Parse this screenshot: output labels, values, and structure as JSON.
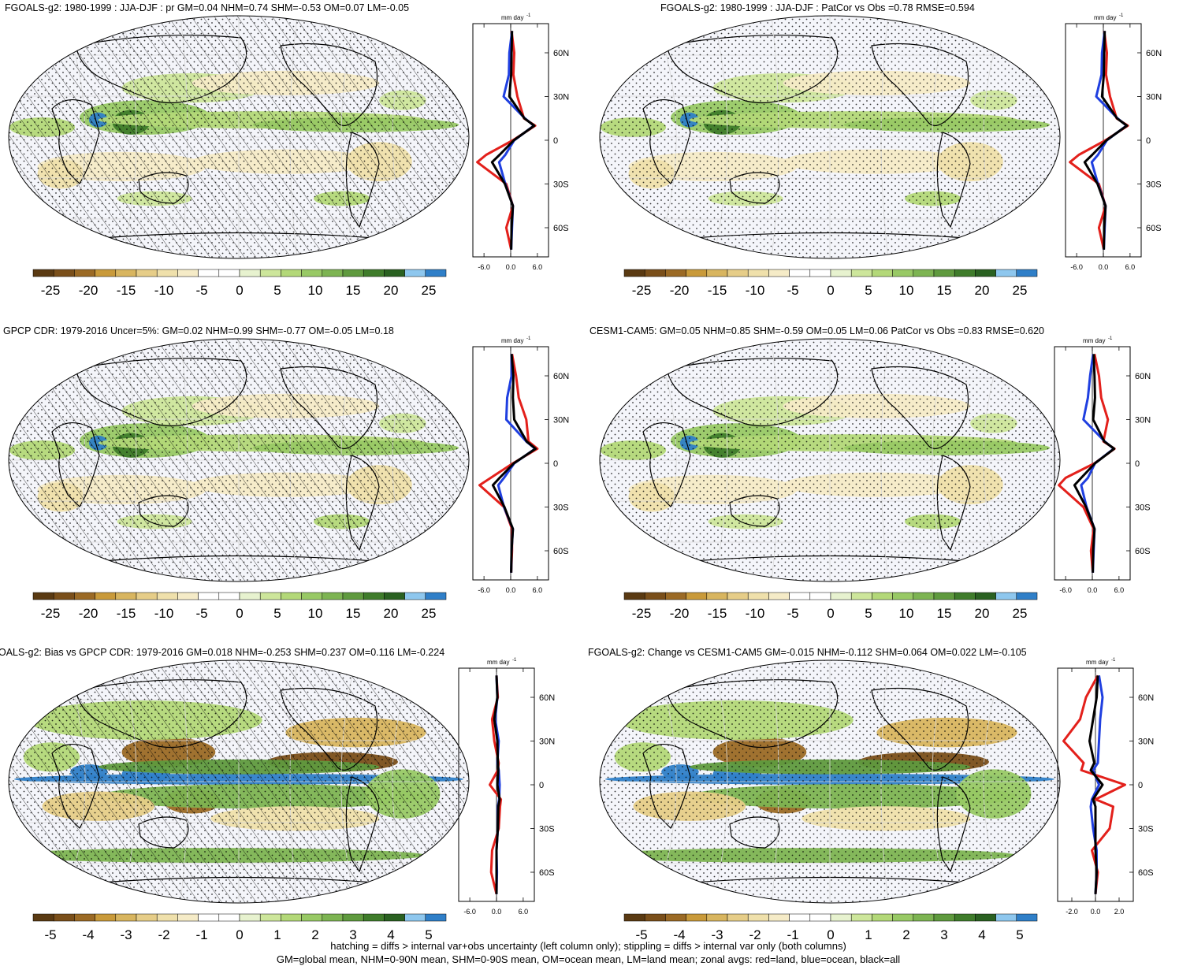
{
  "figure": {
    "footer_line1": "hatching = diffs > internal var+obs uncertainty (left column only); stippling = diffs > internal var only (both columns)",
    "footer_line2": "GM=global mean, NHM=0-90N mean, SHM=0-90S mean, OM=ocean mean, LM=land mean; zonal avgs: red=land, blue=ocean, black=all"
  },
  "zonal_legend": {
    "land": "red",
    "ocean": "blue",
    "all": "black"
  },
  "colors": {
    "ocean_bg": "#f4f5fa",
    "land_line": "#000000",
    "brown_palette": [
      "#5a3a12",
      "#7a4f1a",
      "#9b6a25",
      "#c99a3a",
      "#d8b55f",
      "#e6cd88",
      "#efe0ab",
      "#f5ebc7"
    ],
    "green_palette": [
      "#e7f2cf",
      "#cde69b",
      "#b3d878",
      "#98c965",
      "#7db452",
      "#5f9a3e",
      "#3f7c2b",
      "#2a6121"
    ],
    "blue_palette": [
      "#8ec7ee",
      "#2f7fc8"
    ]
  },
  "panels": [
    {
      "id": "top-left",
      "title": "FGOALS-g2: 1980-1999 : JJA-DJF : pr GM=0.04 NHM=0.74 SHM=-0.53 OM=0.07 LM=-0.05",
      "hatching": true,
      "colorbar_ticks": [
        "-25",
        "-20",
        "-15",
        "-10",
        "-5",
        "0",
        "5",
        "10",
        "15",
        "20",
        "25"
      ],
      "zonal_unit": "mm day",
      "zonal_unit_sup": "-1",
      "zonal_xticks": [
        "-6.0",
        "0.0",
        "6.0"
      ],
      "lat_labels": [
        "60N",
        "30N",
        "0",
        "30S",
        "60S"
      ]
    },
    {
      "id": "top-right",
      "title": "FGOALS-g2: 1980-1999 : JJA-DJF : PatCor vs Obs =0.78 RMSE=0.594",
      "hatching": false,
      "colorbar_ticks": [
        "-25",
        "-20",
        "-15",
        "-10",
        "-5",
        "0",
        "5",
        "10",
        "15",
        "20",
        "25"
      ],
      "zonal_unit": "mm day",
      "zonal_unit_sup": "-1",
      "zonal_xticks": [
        "-6.0",
        "0.0",
        "6.0"
      ],
      "lat_labels": [
        "60N",
        "30N",
        "0",
        "30S",
        "60S"
      ]
    },
    {
      "id": "middle-left",
      "title": "GPCP CDR: 1979-2016 Uncer=5%: GM=0.02 NHM=0.99 SHM=-0.77 OM=-0.05 LM=0.18",
      "hatching": true,
      "colorbar_ticks": [
        "-25",
        "-20",
        "-15",
        "-10",
        "-5",
        "0",
        "5",
        "10",
        "15",
        "20",
        "25"
      ],
      "zonal_unit": "mm day",
      "zonal_unit_sup": "-1",
      "zonal_xticks": [
        "-6.0",
        "0.0",
        "6.0"
      ],
      "lat_labels": [
        "60N",
        "30N",
        "0",
        "30S",
        "60S"
      ]
    },
    {
      "id": "middle-right",
      "title": "CESM1-CAM5: GM=0.05 NHM=0.85 SHM=-0.59 OM=0.05 LM=0.06 PatCor vs Obs =0.83 RMSE=0.620",
      "hatching": false,
      "colorbar_ticks": [
        "-25",
        "-20",
        "-15",
        "-10",
        "-5",
        "0",
        "5",
        "10",
        "15",
        "20",
        "25"
      ],
      "zonal_unit": "mm day",
      "zonal_unit_sup": "-1",
      "zonal_xticks": [
        "-6.0",
        "0.0",
        "6.0"
      ],
      "lat_labels": [
        "60N",
        "30N",
        "0",
        "30S",
        "60S"
      ]
    },
    {
      "id": "bottom-left",
      "title": "OALS-g2: Bias vs GPCP CDR: 1979-2016 GM=0.018 NHM=-0.253 SHM=0.237 OM=0.116 LM=-0.224",
      "hatching": true,
      "colorbar_ticks": [
        "-5",
        "-4",
        "-3",
        "-2",
        "-1",
        "0",
        "1",
        "2",
        "3",
        "4",
        "5"
      ],
      "zonal_unit": "mm day",
      "zonal_unit_sup": "-1",
      "zonal_xticks": [
        "-6.0",
        "0.0",
        "6.0"
      ],
      "lat_labels": [
        "60N",
        "30N",
        "0",
        "30S",
        "60S"
      ]
    },
    {
      "id": "bottom-right",
      "title": "FGOALS-g2: Change vs CESM1-CAM5 GM=-0.015 NHM=-0.112 SHM=0.064 OM=0.022 LM=-0.105",
      "hatching": false,
      "colorbar_ticks": [
        "-5",
        "-4",
        "-3",
        "-2",
        "-1",
        "0",
        "1",
        "2",
        "3",
        "4",
        "5"
      ],
      "zonal_unit": "mm day",
      "zonal_unit_sup": "-1",
      "zonal_xticks": [
        "-2.0",
        "0.0",
        "2.0"
      ],
      "lat_labels": [
        "60N",
        "30N",
        "0",
        "30S",
        "60S"
      ]
    }
  ],
  "chart_data": [
    {
      "type": "heatmap",
      "title": "FGOALS-g2: 1980-1999 : JJA-DJF : pr GM=0.04 NHM=0.74 SHM=-0.53 OM=0.07 LM=-0.05",
      "colorbar_range": [
        -25,
        25
      ],
      "zonal_mean": {
        "lat": [
          75,
          60,
          45,
          30,
          15,
          10,
          0,
          -10,
          -15,
          -30,
          -45,
          -60,
          -75
        ],
        "land": [
          0.2,
          0.8,
          0.6,
          1.5,
          3.0,
          5.5,
          0.5,
          -5.5,
          -7.5,
          -1.0,
          0.5,
          -1.0,
          0.1
        ],
        "ocean": [
          0.3,
          -0.3,
          -0.4,
          -1.6,
          3.2,
          5.2,
          0.8,
          -1.2,
          -2.6,
          -1.2,
          0.5,
          0.3,
          0.1
        ],
        "all": [
          0.3,
          0.2,
          0.1,
          -0.3,
          3.1,
          5.3,
          0.7,
          -2.5,
          -4.2,
          -1.3,
          0.5,
          0.2,
          0.1
        ]
      }
    },
    {
      "type": "heatmap",
      "title": "FGOALS-g2: 1980-1999 : JJA-DJF : PatCor vs Obs =0.78 RMSE=0.594",
      "colorbar_range": [
        -25,
        25
      ],
      "zonal_mean": {
        "lat": [
          75,
          60,
          45,
          30,
          15,
          10,
          0,
          -10,
          -15,
          -30,
          -45,
          -60,
          -75
        ],
        "land": [
          0.2,
          0.8,
          0.6,
          1.5,
          3.0,
          5.5,
          0.5,
          -5.5,
          -7.5,
          -1.0,
          0.5,
          -1.0,
          0.1
        ],
        "ocean": [
          0.3,
          -0.3,
          -0.4,
          -1.6,
          3.2,
          5.2,
          0.8,
          -1.2,
          -2.6,
          -1.2,
          0.5,
          0.3,
          0.1
        ],
        "all": [
          0.3,
          0.2,
          0.1,
          -0.3,
          3.1,
          5.3,
          0.7,
          -2.5,
          -4.2,
          -1.3,
          0.5,
          0.2,
          0.1
        ]
      }
    },
    {
      "type": "heatmap",
      "title": "GPCP CDR: 1979-2016 Uncer=5%: GM=0.02 NHM=0.99 SHM=-0.77 OM=-0.05 LM=0.18",
      "colorbar_range": [
        -25,
        25
      ],
      "zonal_mean": {
        "lat": [
          75,
          60,
          45,
          30,
          15,
          10,
          0,
          -10,
          -15,
          -30,
          -45,
          -60,
          -75
        ],
        "land": [
          0.3,
          1.2,
          1.8,
          3.5,
          4.0,
          6.0,
          0.5,
          -4.5,
          -7.0,
          -1.5,
          0.3,
          0.3,
          0.1
        ],
        "ocean": [
          0.2,
          0.2,
          -0.8,
          -1.0,
          3.5,
          5.5,
          0.8,
          -1.5,
          -2.8,
          -1.5,
          0.5,
          0.2,
          0.1
        ],
        "all": [
          0.2,
          0.6,
          0.5,
          0.8,
          3.6,
          5.6,
          0.7,
          -2.5,
          -4.0,
          -1.4,
          0.5,
          0.2,
          0.1
        ]
      }
    },
    {
      "type": "heatmap",
      "title": "CESM1-CAM5: GM=0.05 NHM=0.85 SHM=-0.59 OM=0.05 LM=0.06 PatCor vs Obs =0.83 RMSE=0.620",
      "colorbar_range": [
        -25,
        25
      ],
      "zonal_mean": {
        "lat": [
          75,
          60,
          45,
          30,
          15,
          10,
          0,
          -10,
          -15,
          -30,
          -45,
          -60,
          -75
        ],
        "land": [
          0.5,
          1.5,
          2.0,
          3.5,
          2.5,
          5.0,
          0.5,
          -6.0,
          -7.5,
          -2.0,
          0.3,
          -0.3,
          0.1
        ],
        "ocean": [
          0.2,
          -0.5,
          -1.0,
          -2.0,
          2.8,
          4.8,
          0.6,
          -1.0,
          -2.5,
          -1.3,
          0.5,
          0.3,
          0.1
        ],
        "all": [
          0.3,
          0.5,
          0.6,
          0.2,
          2.7,
          4.9,
          0.6,
          -2.5,
          -4.0,
          -1.4,
          0.5,
          0.2,
          0.1
        ]
      }
    },
    {
      "type": "heatmap",
      "title": "OALS-g2: Bias vs GPCP CDR: 1979-2016 GM=0.018 NHM=-0.253 SHM=0.237 OM=0.116 LM=-0.224",
      "colorbar_range": [
        -5,
        5
      ],
      "zonal_mean": {
        "lat": [
          75,
          60,
          45,
          30,
          15,
          10,
          0,
          -10,
          -15,
          -30,
          -45,
          -60,
          -75
        ],
        "land": [
          0.0,
          0.3,
          -1.0,
          -0.5,
          0.5,
          0.3,
          -1.5,
          1.0,
          0.8,
          0.5,
          -1.0,
          -1.2,
          0.0
        ],
        "ocean": [
          0.0,
          0.2,
          -0.3,
          0.5,
          0.2,
          0.5,
          0.7,
          0.6,
          0.3,
          0.3,
          0.0,
          0.1,
          0.0
        ],
        "all": [
          0.0,
          0.2,
          -0.5,
          0.2,
          0.3,
          0.4,
          0.2,
          0.7,
          0.4,
          0.3,
          0.0,
          0.0,
          0.0
        ]
      }
    },
    {
      "type": "heatmap",
      "title": "FGOALS-g2: Change vs CESM1-CAM5 GM=-0.015 NHM=-0.112 SHM=0.064 OM=0.022 LM=-0.105",
      "colorbar_range": [
        -5,
        5
      ],
      "zonal_mean": {
        "lat": [
          75,
          60,
          45,
          30,
          15,
          10,
          0,
          -10,
          -15,
          -30,
          -45,
          -60,
          -75
        ],
        "land": [
          0.2,
          -0.8,
          -1.3,
          -2.7,
          -1.0,
          -1.2,
          2.5,
          0.0,
          1.5,
          1.2,
          -0.3,
          0.2,
          0.0
        ],
        "ocean": [
          0.3,
          0.6,
          0.4,
          0.3,
          0.2,
          -0.2,
          0.3,
          -0.3,
          -0.4,
          -0.2,
          0.1,
          0.1,
          0.0
        ],
        "all": [
          0.2,
          0.1,
          -0.2,
          -0.5,
          -0.1,
          -0.4,
          0.6,
          -0.2,
          0.0,
          0.0,
          0.0,
          0.1,
          0.0
        ]
      }
    }
  ]
}
